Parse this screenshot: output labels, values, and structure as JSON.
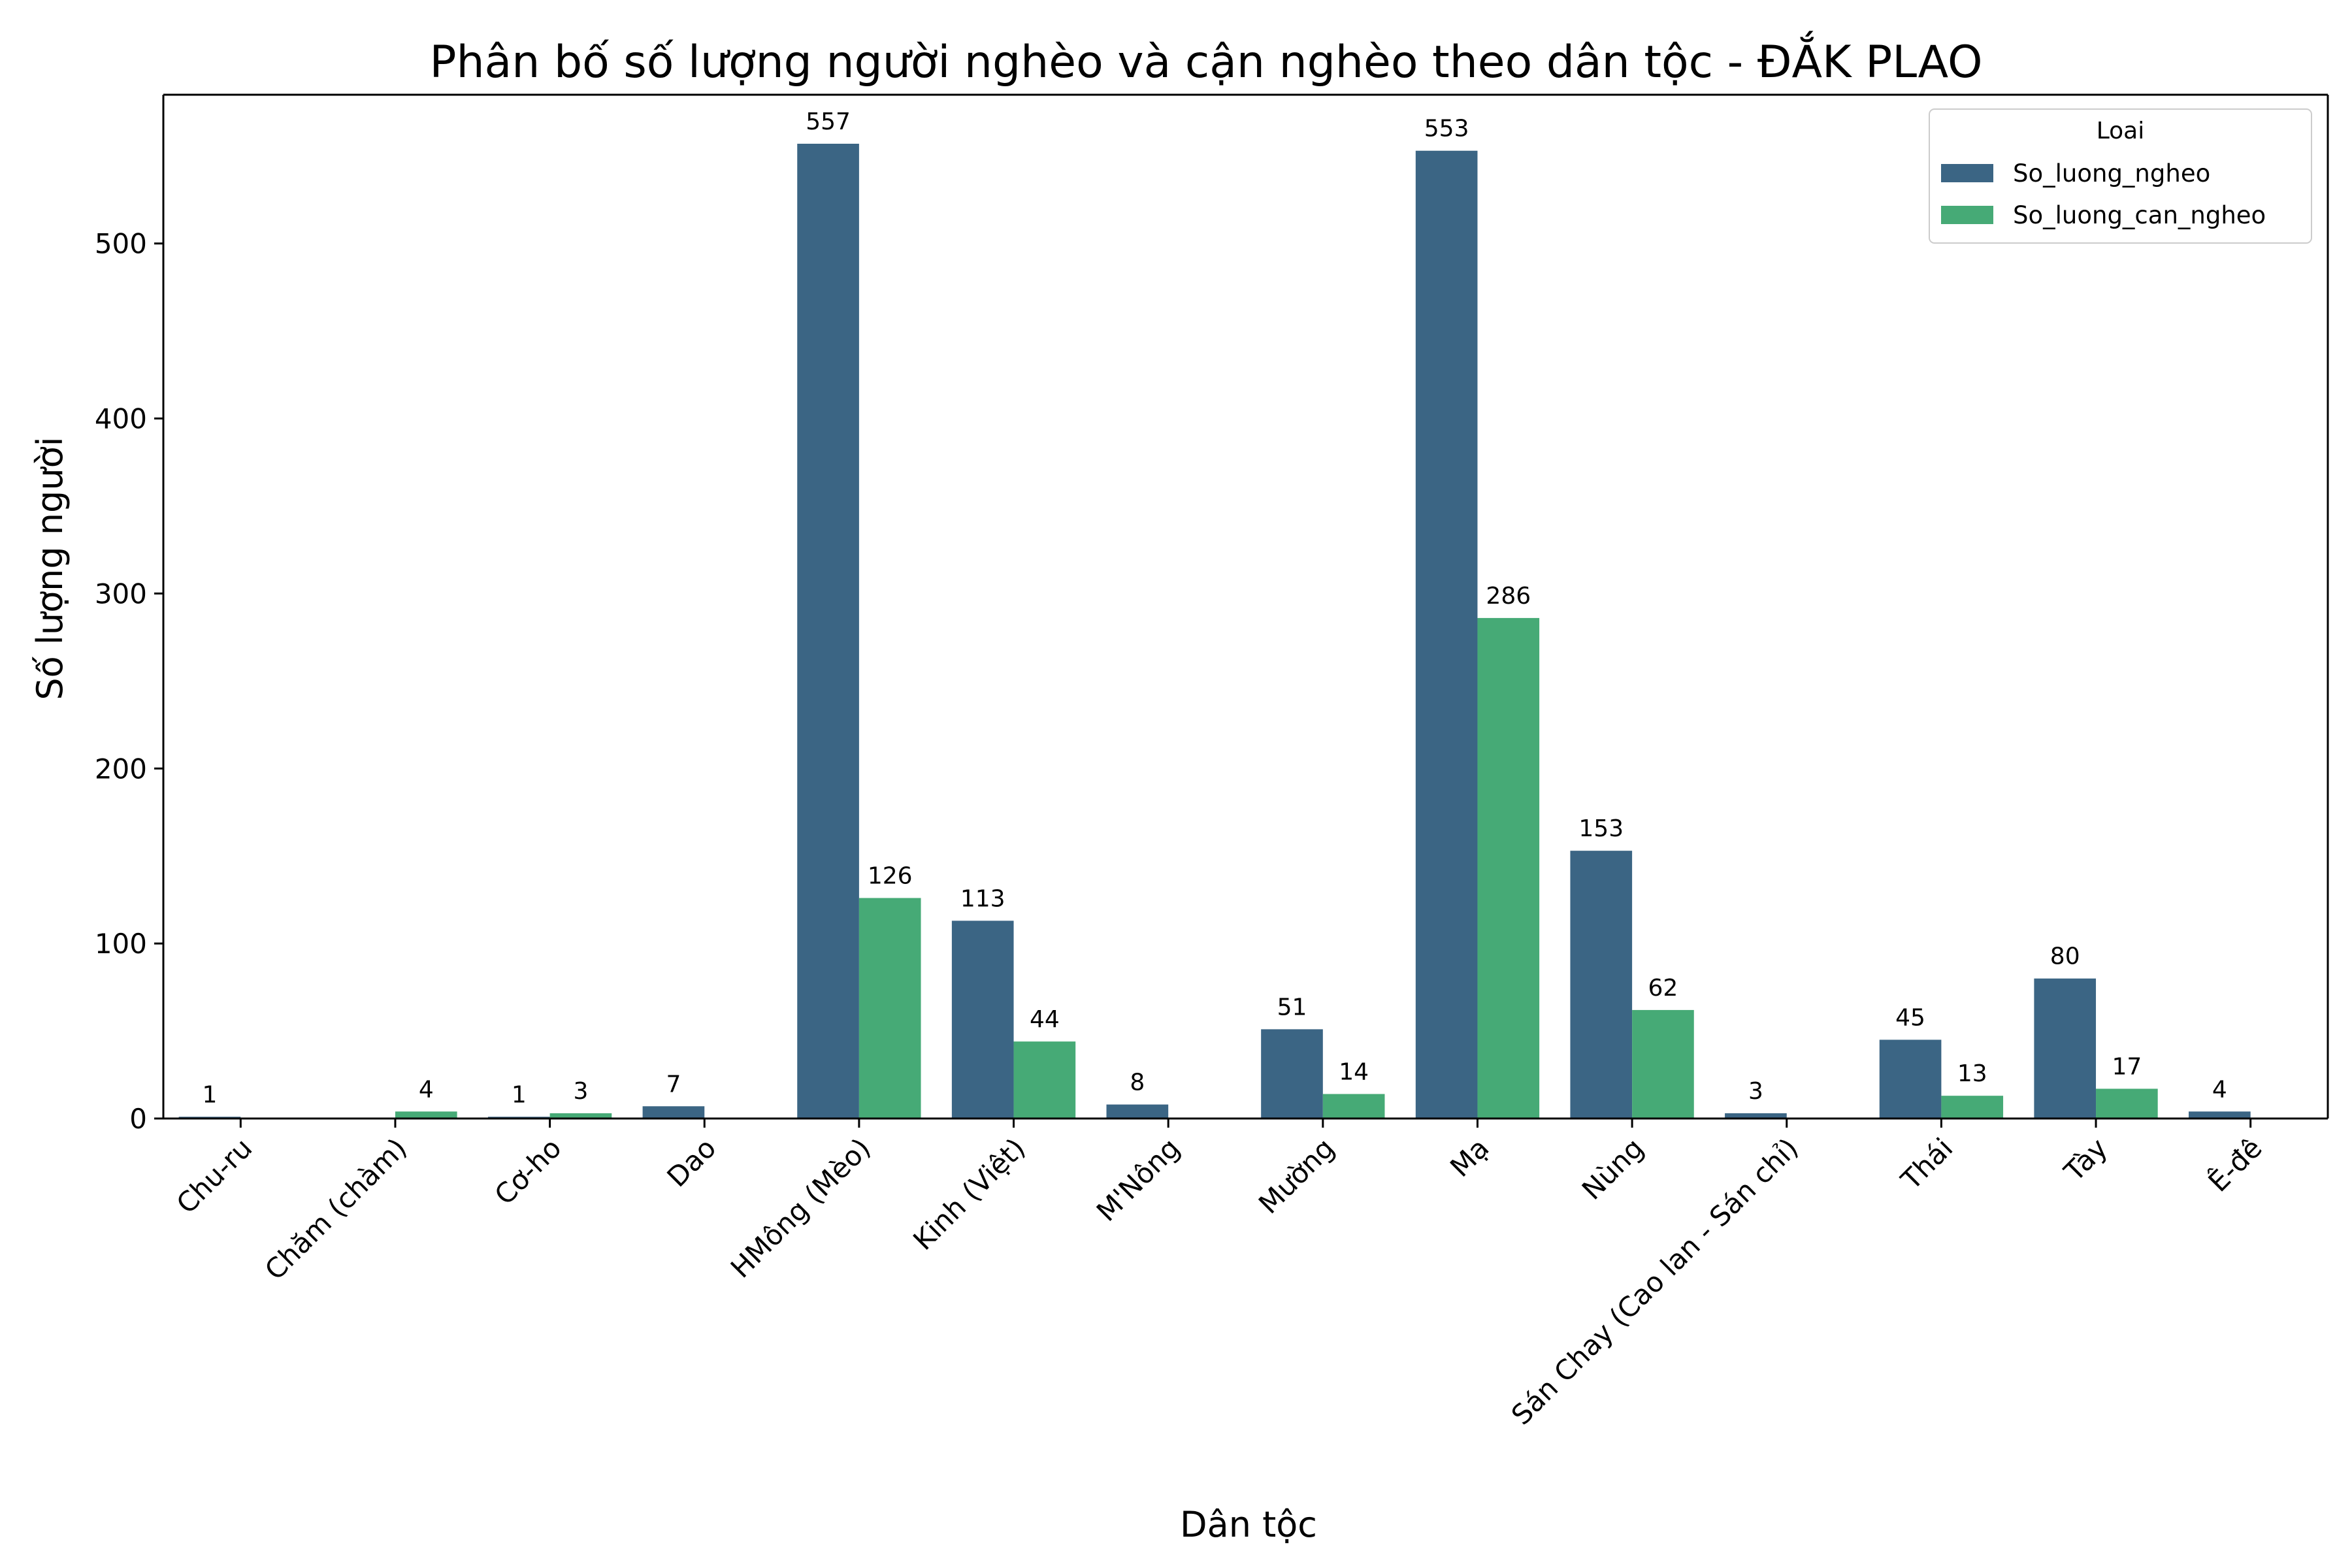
{
  "chart_data": {
    "type": "bar",
    "title": "Phân bố số lượng người nghèo và cận nghèo theo dân tộc - ĐẮK PLAO",
    "xlabel": "Dân tộc",
    "ylabel": "Số lượng người",
    "ylim": [
      0,
      585
    ],
    "yticks": [
      0,
      100,
      200,
      300,
      400,
      500
    ],
    "categories": [
      "Chu-ru",
      "Chăm (chàm)",
      "Cơ-ho",
      "Dao",
      "HMông (Mèo)",
      "Kinh (Việt)",
      "M'Nông",
      "Mường",
      "Mạ",
      "Nùng",
      "Sán Chay (Cao lan - Sán chỉ)",
      "Thái",
      "Tày",
      "Ê-đê"
    ],
    "series": [
      {
        "name": "So_luong_ngheo",
        "color": "#3b6584",
        "values": [
          1,
          null,
          1,
          7,
          557,
          113,
          8,
          51,
          553,
          153,
          3,
          45,
          80,
          4
        ]
      },
      {
        "name": "So_luong_can_ngheo",
        "color": "#46aa76",
        "values": [
          null,
          4,
          3,
          null,
          126,
          44,
          null,
          14,
          286,
          62,
          null,
          13,
          17,
          null
        ]
      }
    ],
    "legend": {
      "title": "Loai",
      "placement": "top-right"
    },
    "grid": false
  }
}
